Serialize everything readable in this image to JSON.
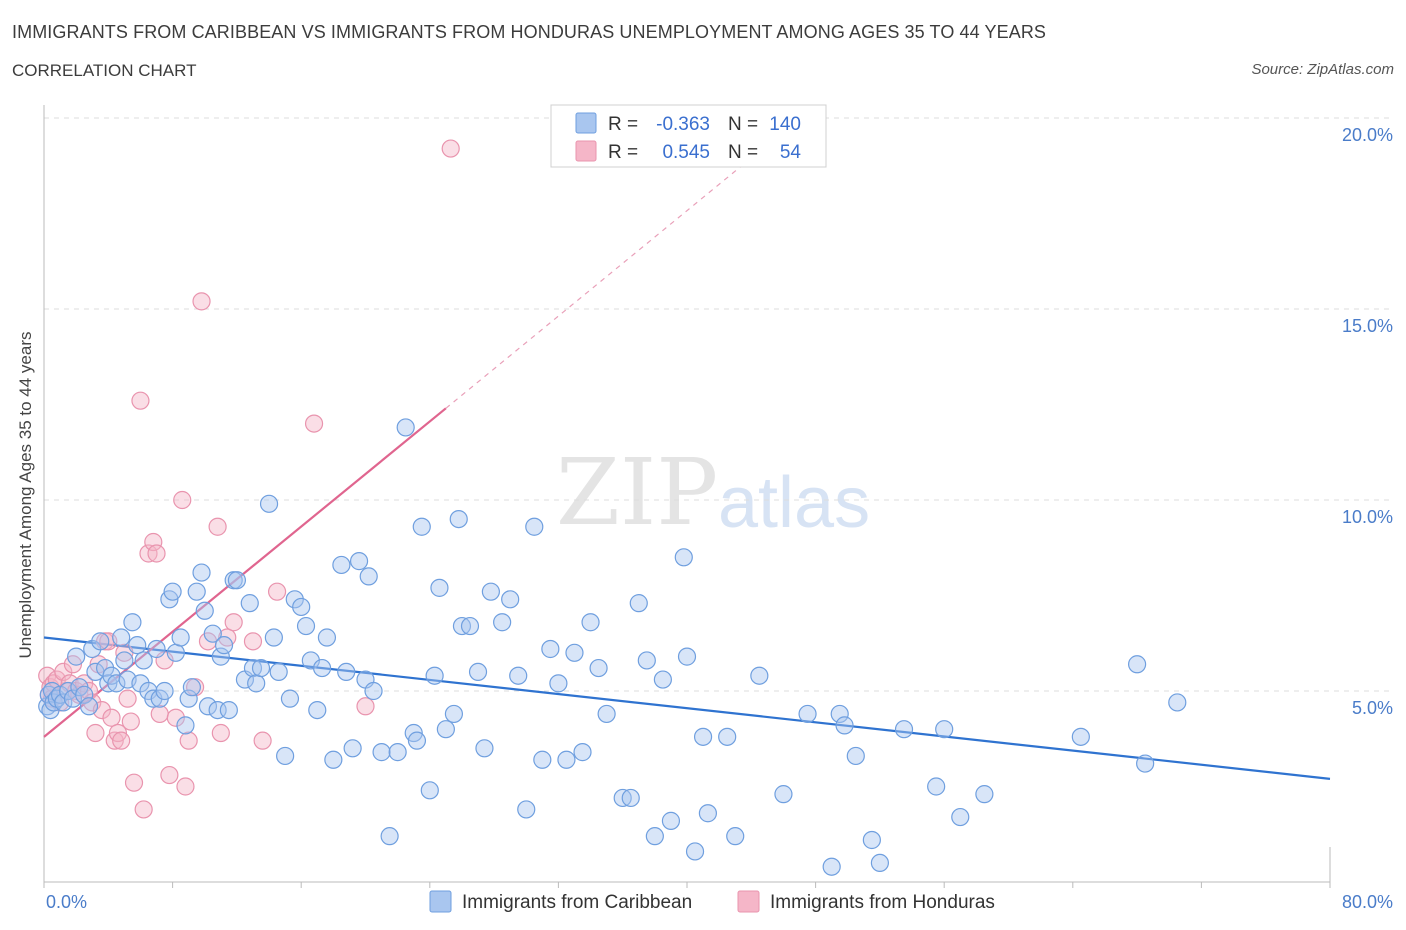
{
  "header": {
    "title": "IMMIGRANTS FROM CARIBBEAN VS IMMIGRANTS FROM HONDURAS UNEMPLOYMENT AMONG AGES 35 TO 44 YEARS",
    "subtitle": "CORRELATION CHART",
    "source": "Source: ZipAtlas.com"
  },
  "watermark": {
    "zip": "ZIP",
    "atlas": "atlas"
  },
  "legend": {
    "r_label": "R =",
    "n_label": "N =",
    "rows": [
      {
        "name": "Immigrants from Caribbean",
        "r": "-0.363",
        "n": "140",
        "color": "#a9c6ef"
      },
      {
        "name": "Immigrants from Honduras",
        "r": "0.545",
        "n": "54",
        "color": "#f5b6c8"
      }
    ]
  },
  "colors": {
    "caribbean_fill": "#a9c6ef",
    "caribbean_stroke": "#6f9fdf",
    "caribbean_line": "#2f73d0",
    "honduras_fill": "#f5b6c8",
    "honduras_stroke": "#e994ae",
    "honduras_line": "#e0658f",
    "axis_text": "#4a7cc9",
    "grid": "#dcdcdc"
  },
  "chart_data": {
    "type": "scatter",
    "title": "IMMIGRANTS FROM CARIBBEAN VS IMMIGRANTS FROM HONDURAS UNEMPLOYMENT AMONG AGES 35 TO 44 YEARS",
    "xlabel": "",
    "ylabel": "Unemployment Among Ages 35 to 44 years",
    "xlim": [
      0,
      80
    ],
    "ylim": [
      0,
      20
    ],
    "x_tick_labels": [
      "0.0%",
      "80.0%"
    ],
    "y_ticks": [
      5,
      10,
      15,
      20
    ],
    "y_tick_labels": [
      "5.0%",
      "10.0%",
      "15.0%",
      "20.0%"
    ],
    "series": [
      {
        "name": "Immigrants from Caribbean",
        "trend": {
          "x": [
            0,
            80
          ],
          "y": [
            6.4,
            2.7
          ]
        },
        "points": [
          [
            0.2,
            4.6
          ],
          [
            0.3,
            4.9
          ],
          [
            0.4,
            4.5
          ],
          [
            0.5,
            5.0
          ],
          [
            0.6,
            4.7
          ],
          [
            0.8,
            4.8
          ],
          [
            1.0,
            4.9
          ],
          [
            1.2,
            4.7
          ],
          [
            1.5,
            5.0
          ],
          [
            1.8,
            4.8
          ],
          [
            2.0,
            5.9
          ],
          [
            2.2,
            5.1
          ],
          [
            2.5,
            4.9
          ],
          [
            2.8,
            4.6
          ],
          [
            3.0,
            6.1
          ],
          [
            3.2,
            5.5
          ],
          [
            3.5,
            6.3
          ],
          [
            3.8,
            5.6
          ],
          [
            4.0,
            5.2
          ],
          [
            4.2,
            5.4
          ],
          [
            4.5,
            5.2
          ],
          [
            4.8,
            6.4
          ],
          [
            5.0,
            5.8
          ],
          [
            5.2,
            5.3
          ],
          [
            5.5,
            6.8
          ],
          [
            5.8,
            6.2
          ],
          [
            6.0,
            5.2
          ],
          [
            6.2,
            5.8
          ],
          [
            6.5,
            5.0
          ],
          [
            6.8,
            4.8
          ],
          [
            7.0,
            6.1
          ],
          [
            7.2,
            4.8
          ],
          [
            7.5,
            5.0
          ],
          [
            7.8,
            7.4
          ],
          [
            8.0,
            7.6
          ],
          [
            8.2,
            6.0
          ],
          [
            8.5,
            6.4
          ],
          [
            8.8,
            4.1
          ],
          [
            9.0,
            4.8
          ],
          [
            9.2,
            5.1
          ],
          [
            9.5,
            7.6
          ],
          [
            9.8,
            8.1
          ],
          [
            10.0,
            7.1
          ],
          [
            10.2,
            4.6
          ],
          [
            10.5,
            6.5
          ],
          [
            10.8,
            4.5
          ],
          [
            11.0,
            5.9
          ],
          [
            11.2,
            6.2
          ],
          [
            11.5,
            4.5
          ],
          [
            11.8,
            7.9
          ],
          [
            12.0,
            7.9
          ],
          [
            12.5,
            5.3
          ],
          [
            12.8,
            7.3
          ],
          [
            13.0,
            5.6
          ],
          [
            13.2,
            5.2
          ],
          [
            13.5,
            5.6
          ],
          [
            14.0,
            9.9
          ],
          [
            14.3,
            6.4
          ],
          [
            14.6,
            5.5
          ],
          [
            15.0,
            3.3
          ],
          [
            15.3,
            4.8
          ],
          [
            15.6,
            7.4
          ],
          [
            16.0,
            7.2
          ],
          [
            16.3,
            6.7
          ],
          [
            16.6,
            5.8
          ],
          [
            17.0,
            4.5
          ],
          [
            17.3,
            5.6
          ],
          [
            17.6,
            6.4
          ],
          [
            18.0,
            3.2
          ],
          [
            18.5,
            8.3
          ],
          [
            18.8,
            5.5
          ],
          [
            19.2,
            3.5
          ],
          [
            19.6,
            8.4
          ],
          [
            20.0,
            5.3
          ],
          [
            20.2,
            8.0
          ],
          [
            20.5,
            5.0
          ],
          [
            21.0,
            3.4
          ],
          [
            21.5,
            1.2
          ],
          [
            22.0,
            3.4
          ],
          [
            22.5,
            11.9
          ],
          [
            23.0,
            3.9
          ],
          [
            23.2,
            3.7
          ],
          [
            23.5,
            9.3
          ],
          [
            24.0,
            2.4
          ],
          [
            24.3,
            5.4
          ],
          [
            24.6,
            7.7
          ],
          [
            25.0,
            4.0
          ],
          [
            25.5,
            4.4
          ],
          [
            25.8,
            9.5
          ],
          [
            26.0,
            6.7
          ],
          [
            26.5,
            6.7
          ],
          [
            27.0,
            5.5
          ],
          [
            27.4,
            3.5
          ],
          [
            27.8,
            7.6
          ],
          [
            28.5,
            6.8
          ],
          [
            29.0,
            7.4
          ],
          [
            29.5,
            5.4
          ],
          [
            30.0,
            1.9
          ],
          [
            30.5,
            9.3
          ],
          [
            31.0,
            3.2
          ],
          [
            31.5,
            6.1
          ],
          [
            32.0,
            5.2
          ],
          [
            32.5,
            3.2
          ],
          [
            33.0,
            6.0
          ],
          [
            33.5,
            3.4
          ],
          [
            34.0,
            6.8
          ],
          [
            34.5,
            5.6
          ],
          [
            35.0,
            4.4
          ],
          [
            36.0,
            2.2
          ],
          [
            36.5,
            2.2
          ],
          [
            37.0,
            7.3
          ],
          [
            37.5,
            5.8
          ],
          [
            38.0,
            1.2
          ],
          [
            38.5,
            5.3
          ],
          [
            39.0,
            1.6
          ],
          [
            39.8,
            8.5
          ],
          [
            40.0,
            5.9
          ],
          [
            40.5,
            0.8
          ],
          [
            41.0,
            3.8
          ],
          [
            41.3,
            1.8
          ],
          [
            42.5,
            3.8
          ],
          [
            43.0,
            1.2
          ],
          [
            44.5,
            5.4
          ],
          [
            46.0,
            2.3
          ],
          [
            47.5,
            4.4
          ],
          [
            49.0,
            0.4
          ],
          [
            49.5,
            4.4
          ],
          [
            49.8,
            4.1
          ],
          [
            50.5,
            3.3
          ],
          [
            51.5,
            1.1
          ],
          [
            52.0,
            0.5
          ],
          [
            53.5,
            4.0
          ],
          [
            55.5,
            2.5
          ],
          [
            56.0,
            4.0
          ],
          [
            57.0,
            1.7
          ],
          [
            58.5,
            2.3
          ],
          [
            64.5,
            3.8
          ],
          [
            68.0,
            5.7
          ],
          [
            68.5,
            3.1
          ],
          [
            70.5,
            4.7
          ]
        ]
      },
      {
        "name": "Immigrants from Honduras",
        "trend": {
          "x": [
            0,
            25
          ],
          "y": [
            3.8,
            12.4
          ]
        },
        "trend_extension": {
          "x": [
            25,
            45
          ],
          "y": [
            12.4,
            19.3
          ]
        },
        "points": [
          [
            0.2,
            5.4
          ],
          [
            0.3,
            4.9
          ],
          [
            0.4,
            5.1
          ],
          [
            0.5,
            4.8
          ],
          [
            0.6,
            5.2
          ],
          [
            0.8,
            5.3
          ],
          [
            1.0,
            4.7
          ],
          [
            1.2,
            5.5
          ],
          [
            1.4,
            5.0
          ],
          [
            1.6,
            5.2
          ],
          [
            1.8,
            5.7
          ],
          [
            2.0,
            5.0
          ],
          [
            2.2,
            4.9
          ],
          [
            2.5,
            5.2
          ],
          [
            2.8,
            5.0
          ],
          [
            3.0,
            4.7
          ],
          [
            3.2,
            3.9
          ],
          [
            3.4,
            5.7
          ],
          [
            3.6,
            4.5
          ],
          [
            3.8,
            6.3
          ],
          [
            4.0,
            6.3
          ],
          [
            4.2,
            4.3
          ],
          [
            4.4,
            3.7
          ],
          [
            4.6,
            3.9
          ],
          [
            4.8,
            3.7
          ],
          [
            5.0,
            6.0
          ],
          [
            5.2,
            4.8
          ],
          [
            5.4,
            4.2
          ],
          [
            5.6,
            2.6
          ],
          [
            6.0,
            12.6
          ],
          [
            6.2,
            1.9
          ],
          [
            6.5,
            8.6
          ],
          [
            6.8,
            8.9
          ],
          [
            7.0,
            8.6
          ],
          [
            7.2,
            4.4
          ],
          [
            7.5,
            5.8
          ],
          [
            7.8,
            2.8
          ],
          [
            8.2,
            4.3
          ],
          [
            8.6,
            10.0
          ],
          [
            8.8,
            2.5
          ],
          [
            9.0,
            3.7
          ],
          [
            9.4,
            5.1
          ],
          [
            9.8,
            15.2
          ],
          [
            10.2,
            6.3
          ],
          [
            10.8,
            9.3
          ],
          [
            11.0,
            3.9
          ],
          [
            11.4,
            6.4
          ],
          [
            11.8,
            6.8
          ],
          [
            13.0,
            6.3
          ],
          [
            13.6,
            3.7
          ],
          [
            14.5,
            7.6
          ],
          [
            16.8,
            12.0
          ],
          [
            20.0,
            4.6
          ],
          [
            25.3,
            19.2
          ]
        ]
      }
    ]
  }
}
